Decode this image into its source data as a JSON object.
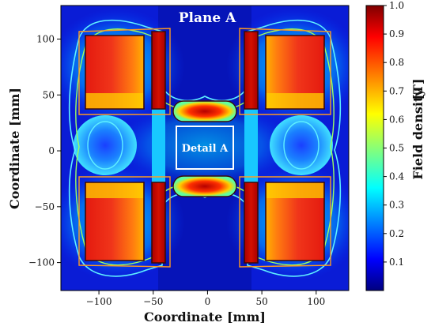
{
  "chart_data": {
    "type": "heatmap",
    "title": "Plane A",
    "xlabel": "Coordinate [mm]",
    "ylabel": "Coordinate [mm]",
    "xlim": [
      -135,
      130
    ],
    "ylim": [
      -125,
      130
    ],
    "xticks": [
      -100,
      -50,
      0,
      50,
      100
    ],
    "xtick_labels": [
      "−100",
      "−50",
      "0",
      "50",
      "100"
    ],
    "yticks": [
      100,
      50,
      0,
      -50,
      -100
    ],
    "ytick_labels": [
      "100",
      "50",
      "0",
      "−50",
      "−100"
    ],
    "colorbar": {
      "label": "Field density",
      "unit": "[T]",
      "range": [
        0.0,
        1.0
      ],
      "ticks": [
        0.1,
        0.2,
        0.3,
        0.4,
        0.5,
        0.6,
        0.7,
        0.8,
        0.9,
        1.0
      ],
      "tick_labels": [
        "0.1",
        "0.2",
        "0.3",
        "0.4",
        "0.5",
        "0.6",
        "0.7",
        "0.8",
        "0.9",
        "1.0"
      ],
      "colormap": "jet"
    },
    "regions": [
      {
        "name": "upper-left magnet",
        "x": [
          -105,
          -53
        ],
        "y": [
          37,
          103
        ],
        "density": 0.9
      },
      {
        "name": "upper-right magnet",
        "x": [
          57,
          107
        ],
        "y": [
          37,
          103
        ],
        "density": 0.9
      },
      {
        "name": "lower-left magnet",
        "x": [
          -105,
          -53
        ],
        "y": [
          -103,
          -33
        ],
        "density": 0.9
      },
      {
        "name": "lower-right magnet",
        "x": [
          57,
          107
        ],
        "y": [
          -103,
          -33
        ],
        "density": 0.9
      },
      {
        "name": "left inner pole",
        "x": [
          -47,
          -34
        ],
        "y": [
          -103,
          105
        ],
        "density": 0.85
      },
      {
        "name": "right inner pole",
        "x": [
          34,
          47
        ],
        "y": [
          -103,
          105
        ],
        "density": 0.85
      },
      {
        "name": "top center gap",
        "x": [
          -26,
          26
        ],
        "y": [
          30,
          46
        ],
        "density": 0.85
      },
      {
        "name": "bottom center gap",
        "x": [
          -26,
          26
        ],
        "y": [
          -40,
          -24
        ],
        "density": 0.85
      },
      {
        "name": "left center lobe",
        "x": [
          -122,
          -75
        ],
        "y": [
          -20,
          20
        ],
        "density": 0.25
      },
      {
        "name": "right center lobe",
        "x": [
          75,
          122
        ],
        "y": [
          -20,
          20
        ],
        "density": 0.25
      }
    ],
    "annotations": [
      {
        "text": "Detail A",
        "x": [
          -25,
          25
        ],
        "y": [
          -20,
          20
        ]
      }
    ],
    "grid": false
  }
}
